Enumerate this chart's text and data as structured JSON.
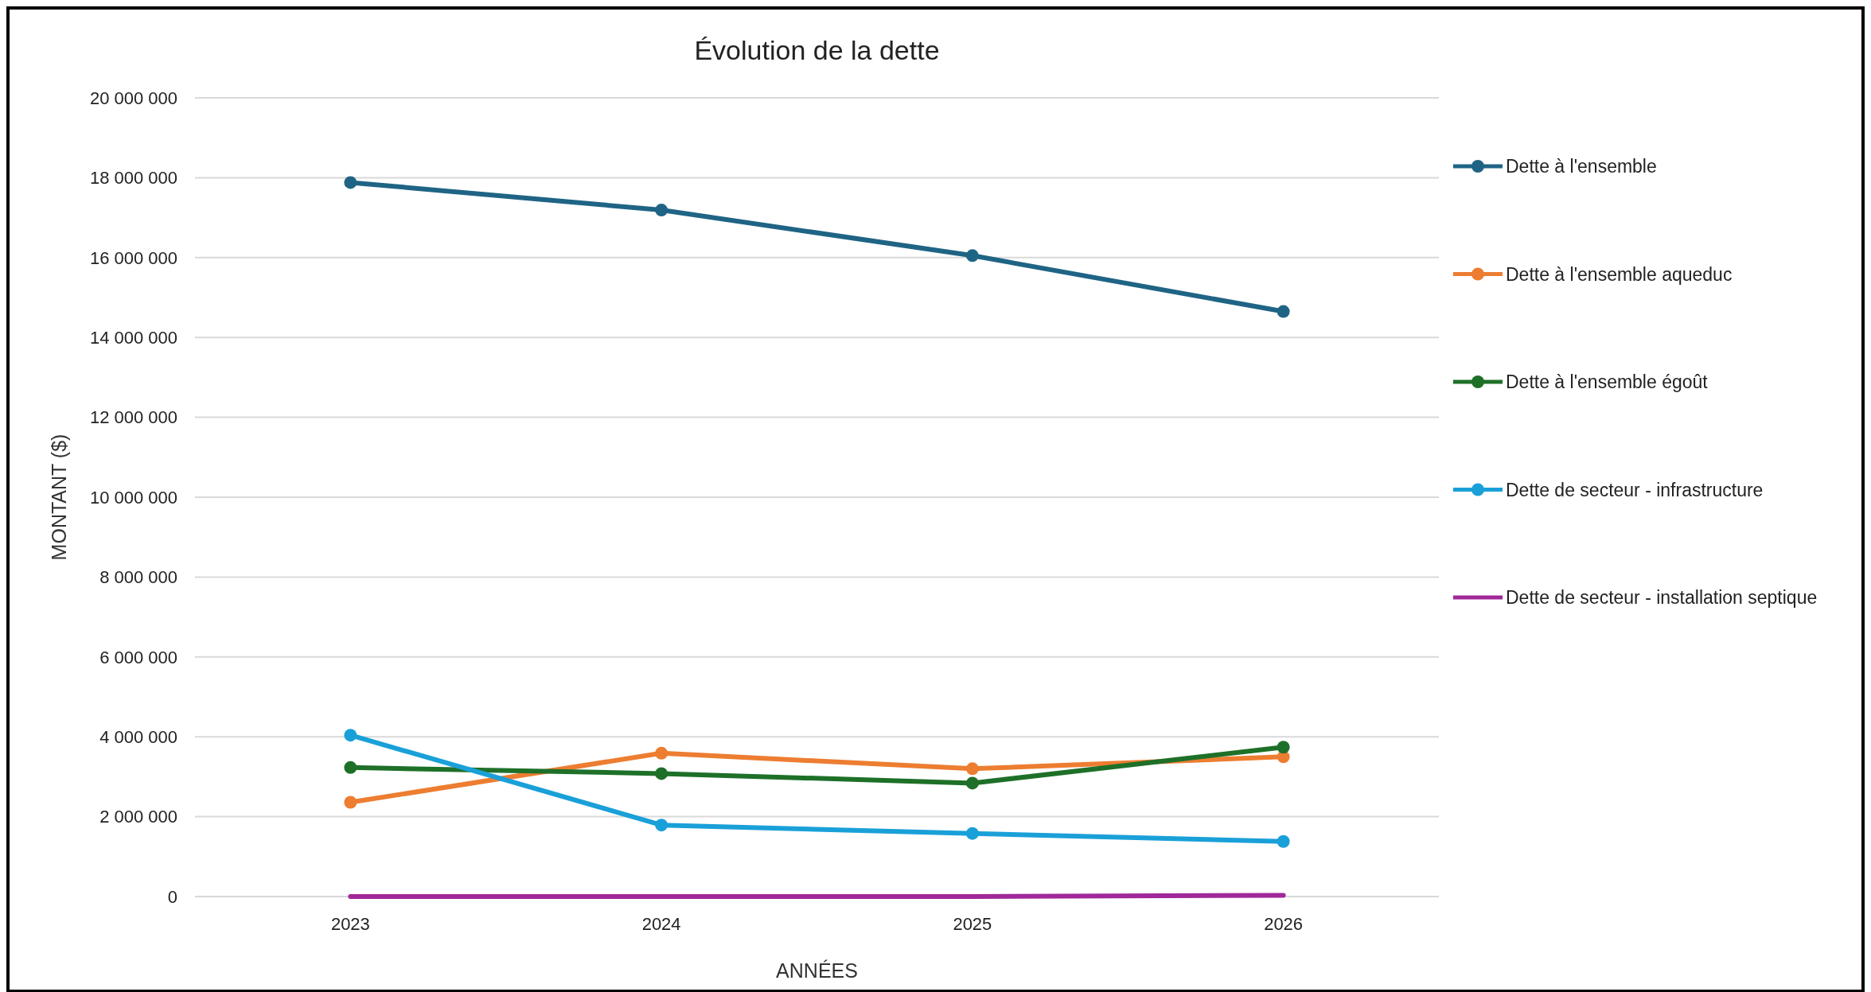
{
  "chart_data": {
    "type": "line",
    "title": "Évolution de la dette",
    "xlabel": "ANNÉES",
    "ylabel": "MONTANT  ($)",
    "categories": [
      "2023",
      "2024",
      "2025",
      "2026"
    ],
    "series": [
      {
        "name": "Dette à l'ensemble",
        "color": "#1f6485",
        "marker": "circle",
        "values": [
          17880000,
          17190000,
          16050000,
          14650000
        ]
      },
      {
        "name": "Dette à l'ensemble aqueduc",
        "color": "#ed7d31",
        "marker": "circle",
        "values": [
          2360000,
          3590000,
          3200000,
          3500000
        ]
      },
      {
        "name": "Dette à l'ensemble égoût",
        "color": "#1e7028",
        "marker": "circle",
        "values": [
          3230000,
          3080000,
          2840000,
          3740000
        ]
      },
      {
        "name": "Dette de secteur - infrastructure",
        "color": "#1aa0d8",
        "marker": "circle",
        "values": [
          4040000,
          1790000,
          1580000,
          1380000
        ]
      },
      {
        "name": "Dette de secteur - installation septique",
        "color": "#a0289a",
        "marker": "none",
        "values": [
          0,
          0,
          0,
          30000
        ]
      }
    ],
    "ylim": [
      0,
      20000000
    ],
    "yticks": [
      0,
      {
        "value": 2000000,
        "label": "2 000 000"
      },
      {
        "value": 4000000,
        "label": "4 000 000"
      },
      {
        "value": 6000000,
        "label": "6 000 000"
      },
      {
        "value": 8000000,
        "label": "8 000 000"
      },
      {
        "value": 10000000,
        "label": "10 000 000"
      },
      {
        "value": 12000000,
        "label": "12 000 000"
      },
      {
        "value": 14000000,
        "label": "14 000 000"
      },
      {
        "value": 16000000,
        "label": "16 000 000"
      },
      {
        "value": 18000000,
        "label": "18 000 000"
      },
      {
        "value": 20000000,
        "label": "20 000 000"
      }
    ],
    "grid": "y",
    "legend": "right",
    "line_style": "solid"
  }
}
